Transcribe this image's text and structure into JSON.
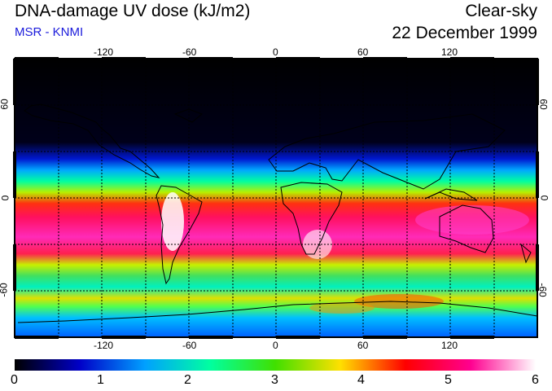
{
  "header": {
    "title": "DNA-damage UV dose (kJ/m2)",
    "subtitle": "MSR - KNMI",
    "mode": "Clear-sky",
    "date": "22 December 1999"
  },
  "map": {
    "lon_ticks_top": [
      "-120",
      "-60",
      "0",
      "60",
      "120"
    ],
    "lon_ticks_bottom": [
      "-120",
      "-60",
      "0",
      "60",
      "120"
    ],
    "lat_ticks_left": [
      "60",
      "0",
      "-60"
    ],
    "lat_ticks_right": [
      "60",
      "0",
      "-60"
    ],
    "lon_range": [
      -180,
      180
    ],
    "lat_range": [
      -90,
      90
    ]
  },
  "colorbar": {
    "labels": [
      "0",
      "1",
      "2",
      "3",
      "4",
      "5",
      "6"
    ],
    "min": 0,
    "max": 6,
    "stops": [
      "#000000",
      "#0000c8",
      "#00a0ff",
      "#00ffa0",
      "#40e000",
      "#ffe000",
      "#ff0000",
      "#ff0090",
      "#ffffff"
    ]
  }
}
